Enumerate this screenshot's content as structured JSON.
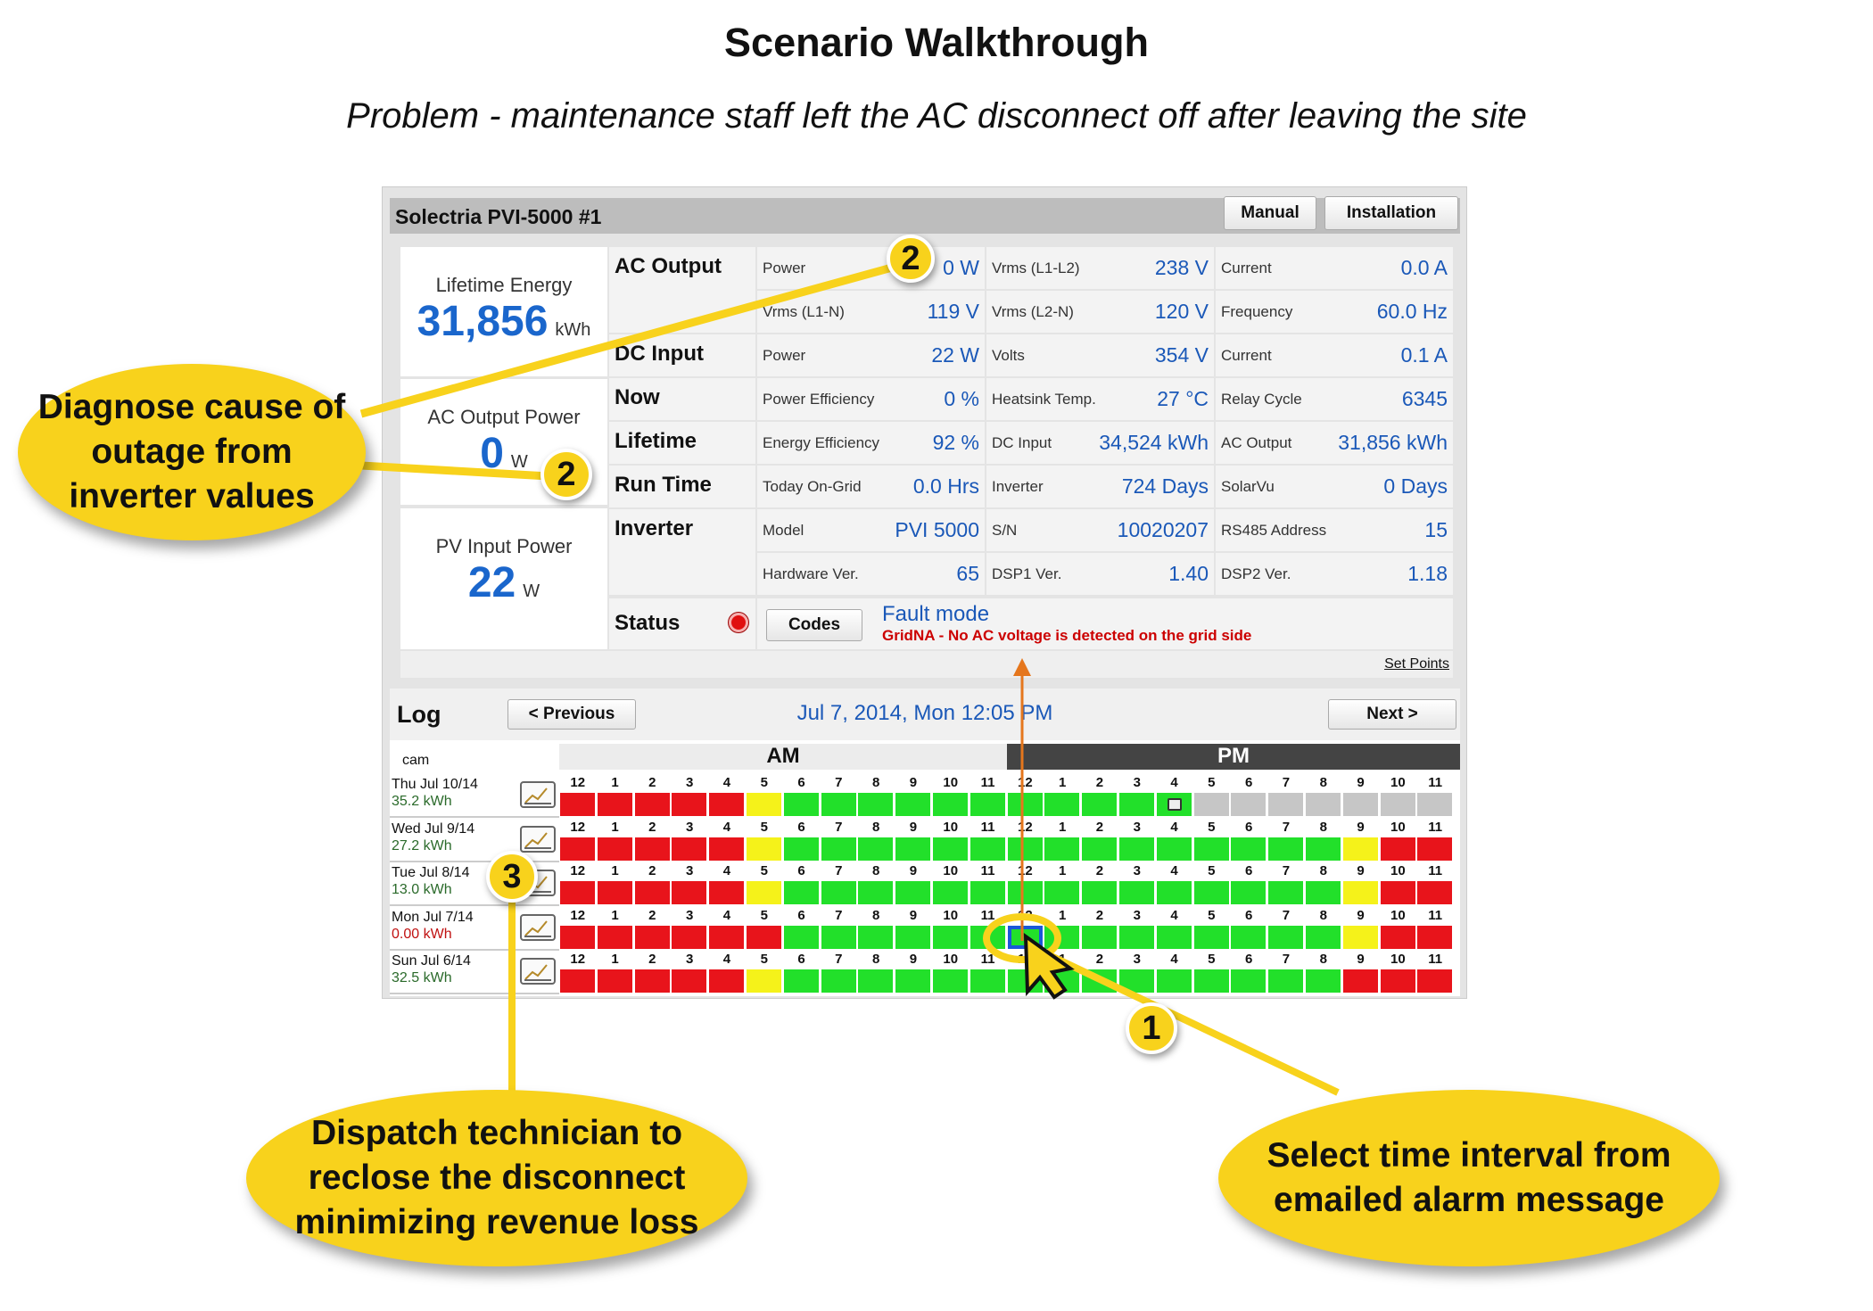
{
  "title": "Scenario Walkthrough",
  "subtitle": "Problem - maintenance staff left the AC disconnect off after leaving the site",
  "panel": {
    "device": "Solectria PVI-5000 #1",
    "manual_label": "Manual",
    "installation_label": "Installation",
    "cards": [
      {
        "label": "Lifetime Energy",
        "value": "31,856",
        "unit": "kWh"
      },
      {
        "label": "AC Output Power",
        "value": "0",
        "unit": "W"
      },
      {
        "label": "PV Input Power",
        "value": "22",
        "unit": "W"
      }
    ],
    "sections": [
      "AC Output",
      "DC Input",
      "Now",
      "Lifetime",
      "Run Time",
      "Inverter"
    ],
    "rows": [
      [
        [
          "Power",
          "0 W"
        ],
        [
          "Vrms (L1-L2)",
          "238 V"
        ],
        [
          "Current",
          "0.0 A"
        ]
      ],
      [
        [
          "Vrms (L1-N)",
          "119 V"
        ],
        [
          "Vrms (L2-N)",
          "120 V"
        ],
        [
          "Frequency",
          "60.0 Hz"
        ]
      ],
      [
        [
          "Power",
          "22 W"
        ],
        [
          "Volts",
          "354 V"
        ],
        [
          "Current",
          "0.1 A"
        ]
      ],
      [
        [
          "Power Efficiency",
          "0 %"
        ],
        [
          "Heatsink Temp.",
          "27 °C"
        ],
        [
          "Relay Cycle",
          "6345"
        ]
      ],
      [
        [
          "Energy Efficiency",
          "92 %"
        ],
        [
          "DC Input",
          "34,524 kWh"
        ],
        [
          "AC Output",
          "31,856 kWh"
        ]
      ],
      [
        [
          "Today On-Grid",
          "0.0 Hrs"
        ],
        [
          "Inverter",
          "724 Days"
        ],
        [
          "SolarVu",
          "0 Days"
        ]
      ],
      [
        [
          "Model",
          "PVI 5000"
        ],
        [
          "S/N",
          "10020207"
        ],
        [
          "RS485 Address",
          "15"
        ]
      ],
      [
        [
          "Hardware Ver.",
          "65"
        ],
        [
          "DSP1 Ver.",
          "1.40"
        ],
        [
          "DSP2 Ver.",
          "1.18"
        ]
      ]
    ],
    "status": {
      "label": "Status",
      "codes_label": "Codes",
      "mode": "Fault mode",
      "message": "GridNA - No AC voltage is detected on the grid side",
      "indicator_color": "#e01010"
    },
    "set_points": "Set Points"
  },
  "log": {
    "title": "Log",
    "previous": "< Previous",
    "next": "Next >",
    "datetime": "Jul 7, 2014, Mon 12:05 PM",
    "am": "AM",
    "pm": "PM",
    "cam": "cam",
    "hours": [
      "12",
      "1",
      "2",
      "3",
      "4",
      "5",
      "6",
      "7",
      "8",
      "9",
      "10",
      "11",
      "12",
      "1",
      "2",
      "3",
      "4",
      "5",
      "6",
      "7",
      "8",
      "9",
      "10",
      "11"
    ],
    "colors": {
      "R": "#e8141b",
      "Y": "#f5f21a",
      "G": "#22e02a",
      "N": "#c6c6c6"
    },
    "days": [
      {
        "day": "Thu Jul 10/14",
        "energy": "35.2 kWh",
        "cells": "RRRRRYGGGGGGGGGGGNNNNNNN",
        "current": 16
      },
      {
        "day": "Wed Jul 9/14",
        "energy": "27.2 kWh",
        "cells": "RRRRRYGGGGGGGGGGGGGGGYRR"
      },
      {
        "day": "Tue Jul 8/14",
        "energy": "13.0 kWh",
        "cells": "RRRRRYGGGGGGGGGGGGGGGYRR"
      },
      {
        "day": "Mon Jul 7/14",
        "energy": "0.00 kWh",
        "cells": "RRRRRRGGGGGGGGGGGGGGGYRR",
        "selected": 12,
        "energy_color": "#c01010"
      },
      {
        "day": "Sun Jul 6/14",
        "energy": "32.5 kWh",
        "cells": "RRRRRYGGGGGGGGGGGGGGGRRR"
      }
    ]
  },
  "callouts": {
    "diagnose": "Diagnose cause of outage from inverter values",
    "dispatch": "Dispatch technician to reclose the disconnect minimizing revenue loss",
    "select": "Select time interval from emailed alarm message"
  },
  "badges": [
    "1",
    "2",
    "2",
    "3"
  ]
}
